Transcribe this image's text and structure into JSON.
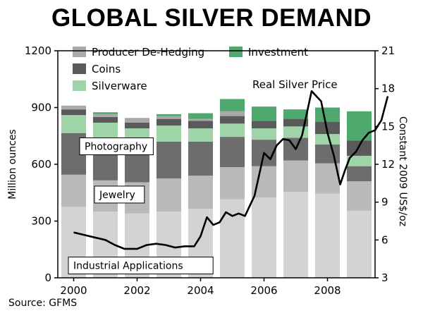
{
  "title": "GLOBAL SILVER DEMAND",
  "source": "Source: GFMS",
  "chart_data": {
    "type": "bar",
    "stacked": true,
    "categories": [
      "2000",
      "2001",
      "2002",
      "2003",
      "2004",
      "2005",
      "2006",
      "2007",
      "2008",
      "2009"
    ],
    "x_tick_labels": [
      "2000",
      "2002",
      "2004",
      "2006",
      "2008"
    ],
    "ylabel": "Million ounces",
    "ylim": [
      0,
      1200
    ],
    "y_ticks": [
      0,
      300,
      600,
      900,
      1200
    ],
    "y2label": "Constant 2009 US$/oz",
    "y2lim": [
      3,
      21
    ],
    "y2_ticks": [
      3,
      6,
      9,
      12,
      15,
      18,
      21
    ],
    "legend_position": "top-left",
    "colors": {
      "industrial": "#d3d3d3",
      "jewelry": "#b9b9b9",
      "photography": "#6d6d6d",
      "silverware": "#9fd4a8",
      "coins": "#5a5a5a",
      "hedging": "#a9a9a9",
      "investment": "#4fa96e",
      "price_line": "#000000"
    },
    "series": [
      {
        "key": "industrial",
        "name": "Industrial Applications",
        "values": [
          375,
          350,
          340,
          350,
          365,
          415,
          425,
          455,
          445,
          355
        ]
      },
      {
        "key": "jewelry",
        "name": "Jewelry",
        "values": [
          170,
          165,
          165,
          175,
          175,
          170,
          165,
          165,
          160,
          155
        ]
      },
      {
        "key": "photography",
        "name": "Photography",
        "values": [
          220,
          210,
          200,
          195,
          180,
          160,
          140,
          120,
          100,
          80
        ]
      },
      {
        "key": "silverware",
        "name": "Silverware",
        "values": [
          95,
          95,
          85,
          85,
          70,
          70,
          60,
          60,
          55,
          55
        ]
      },
      {
        "key": "coins",
        "name": "Coins",
        "values": [
          30,
          30,
          30,
          35,
          40,
          40,
          40,
          40,
          65,
          80
        ]
      },
      {
        "key": "hedging",
        "name": "Producer De-Hedging",
        "values": [
          20,
          15,
          25,
          15,
          10,
          25,
          0,
          0,
          0,
          0
        ]
      },
      {
        "key": "investment",
        "name": "Investment",
        "values": [
          0,
          10,
          0,
          10,
          30,
          65,
          75,
          50,
          75,
          155
        ]
      }
    ],
    "legend": [
      {
        "key": "hedging",
        "name": "Producer De-Hedging"
      },
      {
        "key": "investment",
        "name": "Investment"
      },
      {
        "key": "coins",
        "name": "Coins"
      },
      {
        "key": "silverware",
        "name": "Silverware"
      }
    ],
    "bar_labels": [
      {
        "key": "photography",
        "text": "Photography"
      },
      {
        "key": "jewelry",
        "text": "Jewelry"
      },
      {
        "key": "industrial",
        "text": "Industrial Applications"
      }
    ],
    "price_series": {
      "name": "Real Silver Price",
      "x": [
        2000.0,
        2000.5,
        2001.0,
        2001.3,
        2001.6,
        2002.0,
        2002.3,
        2002.6,
        2002.9,
        2003.2,
        2003.5,
        2003.8,
        2004.0,
        2004.2,
        2004.4,
        2004.6,
        2004.8,
        2005.0,
        2005.2,
        2005.4,
        2005.7,
        2006.0,
        2006.2,
        2006.4,
        2006.6,
        2006.8,
        2007.0,
        2007.2,
        2007.5,
        2007.8,
        2008.0,
        2008.2,
        2008.4,
        2008.55,
        2008.7,
        2008.9,
        2009.1,
        2009.3,
        2009.5,
        2009.7,
        2009.9
      ],
      "y": [
        6.6,
        6.3,
        6.0,
        5.6,
        5.3,
        5.3,
        5.6,
        5.7,
        5.6,
        5.4,
        5.5,
        5.5,
        6.3,
        7.8,
        7.2,
        7.4,
        8.2,
        7.9,
        8.1,
        7.9,
        9.5,
        12.9,
        12.4,
        13.5,
        14.0,
        13.9,
        13.2,
        14.3,
        17.8,
        17.0,
        14.5,
        12.7,
        10.4,
        11.5,
        12.5,
        13.0,
        13.9,
        14.5,
        14.7,
        15.5,
        17.4
      ]
    }
  }
}
